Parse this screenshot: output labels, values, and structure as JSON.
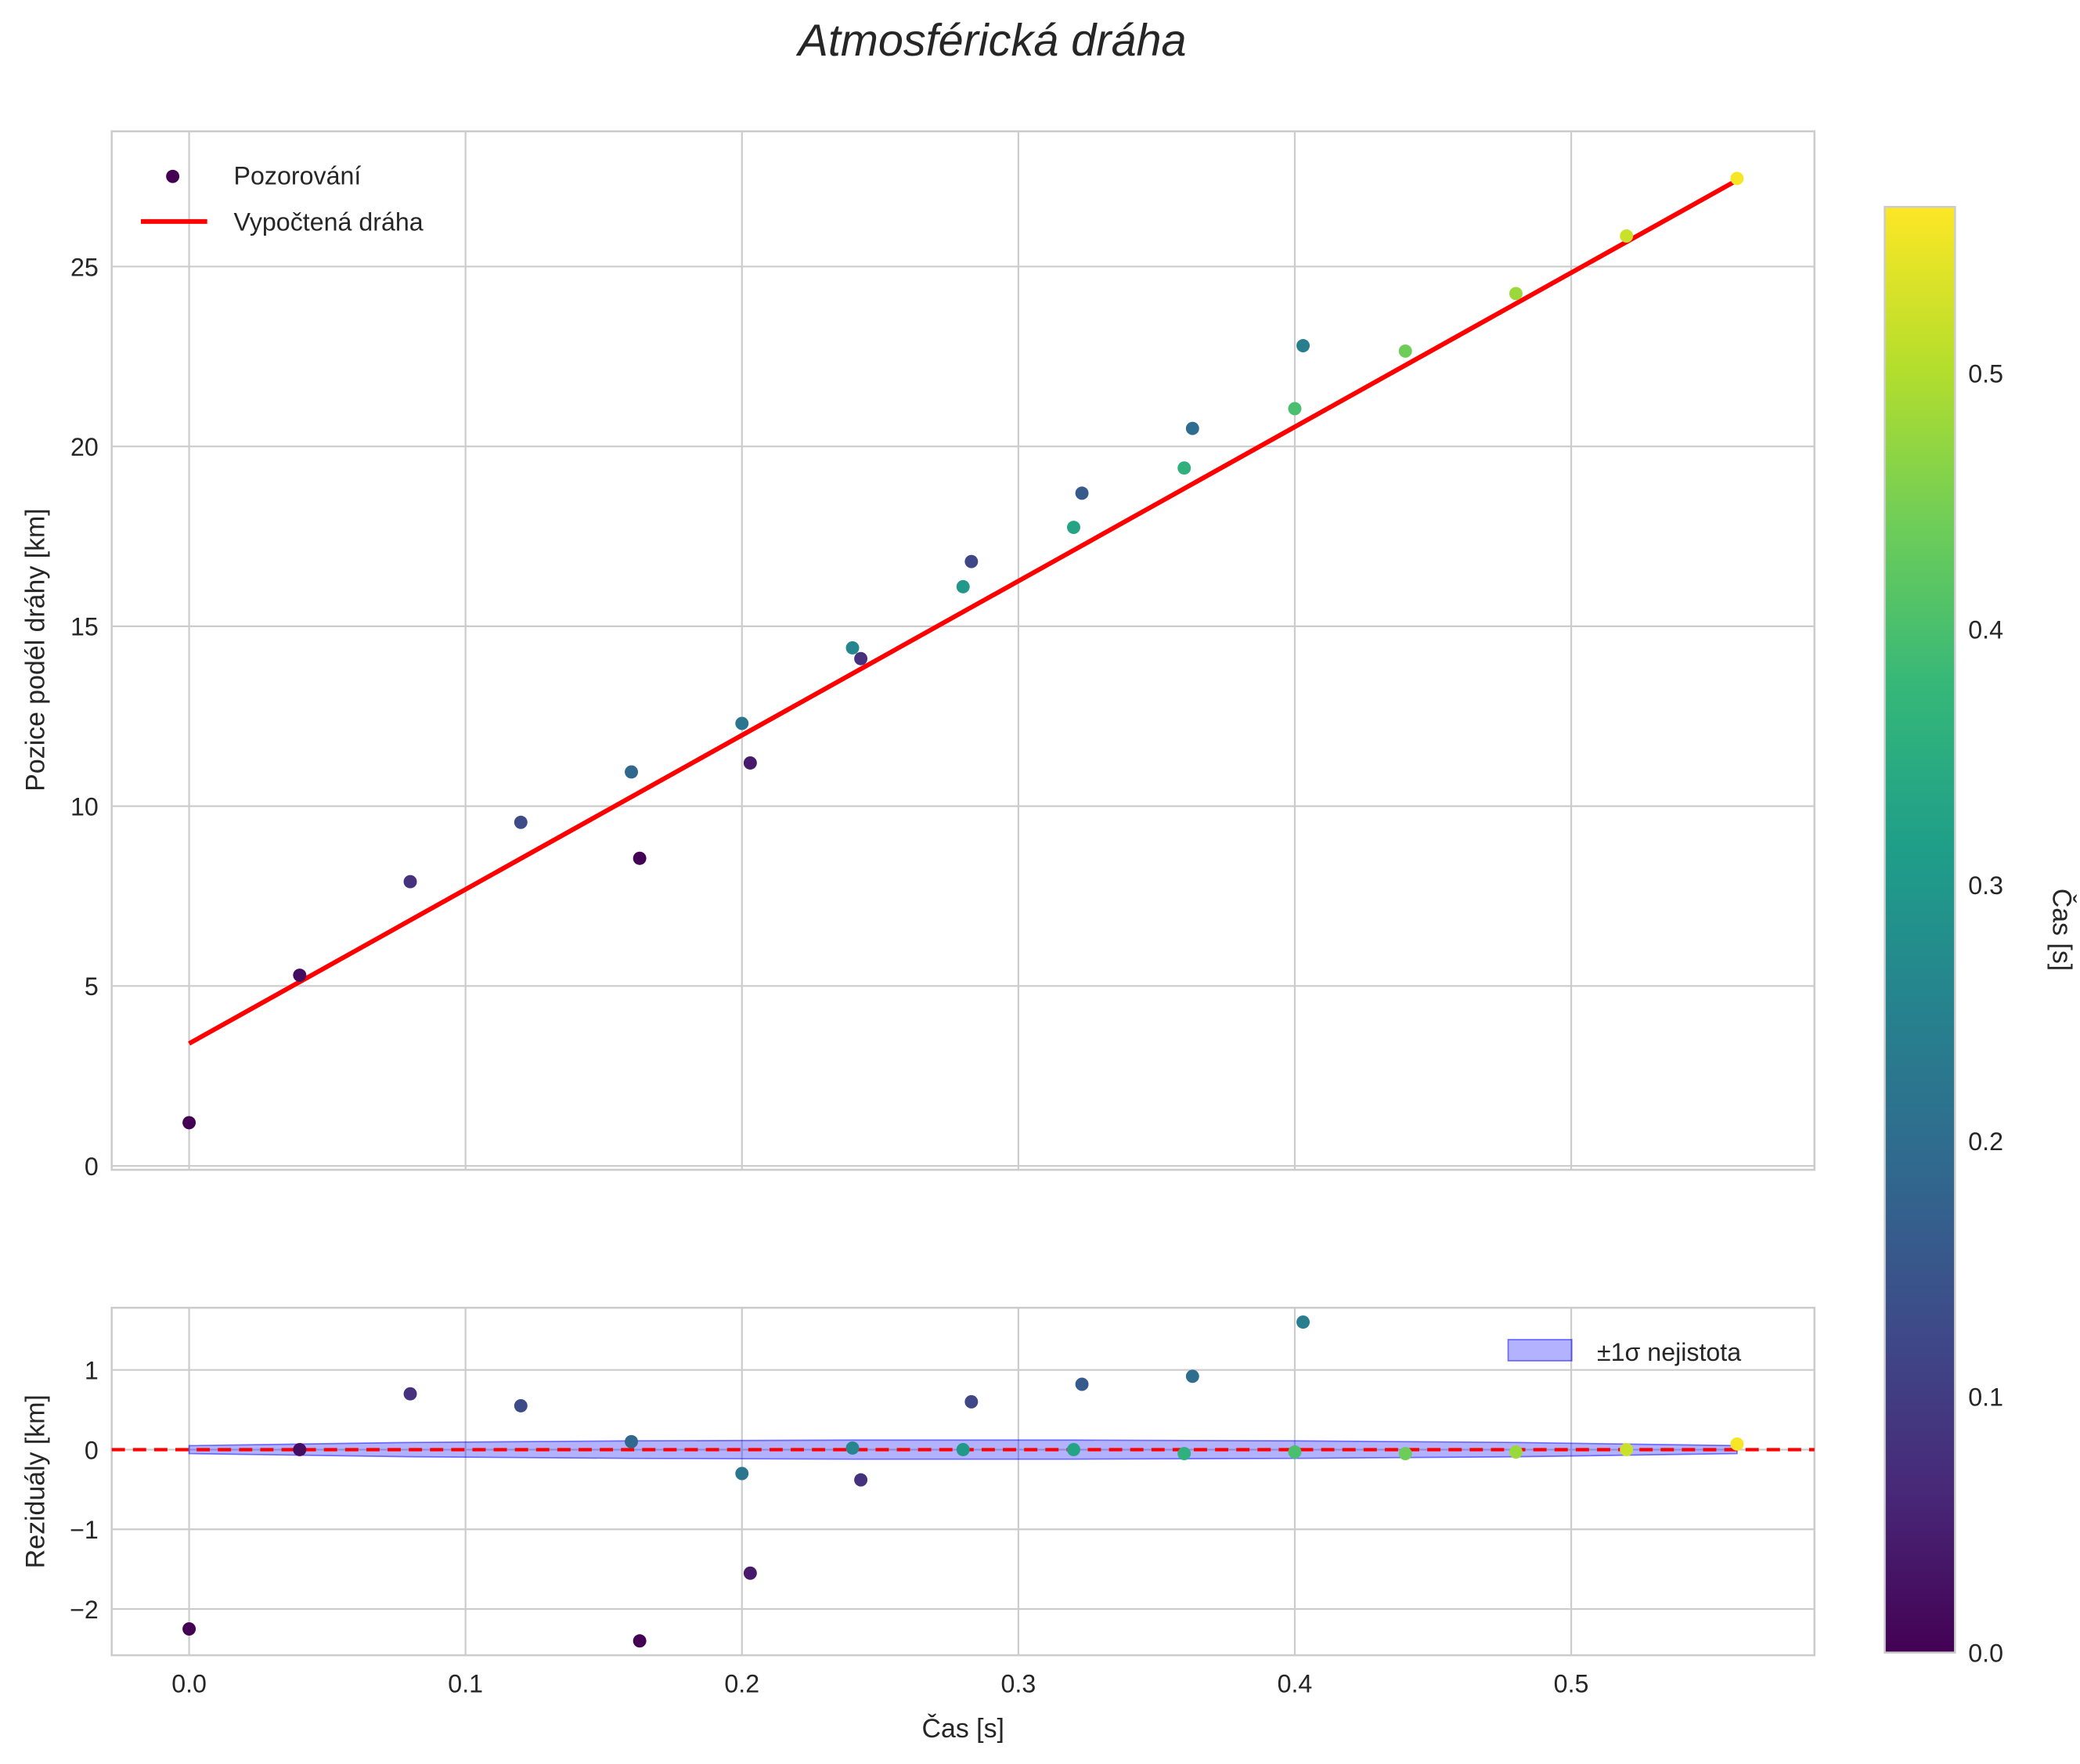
{
  "chart_data": [
    {
      "type": "scatter",
      "title": "Atmosférická dráha",
      "xlabel": "",
      "ylabel": "Pozice podél dráhy [km]",
      "xlim": [
        -0.028,
        0.588
      ],
      "ylim": [
        -0.11,
        28.76
      ],
      "xticks": [
        "0.0",
        "0.1",
        "0.2",
        "0.3",
        "0.4",
        "0.5"
      ],
      "yticks": [
        "0",
        "5",
        "10",
        "15",
        "20",
        "25"
      ],
      "legend": {
        "position": "top-left",
        "entries": [
          "Pozorování",
          "Vypočtená dráha"
        ]
      },
      "series": [
        {
          "name": "Pozorování",
          "type": "scatter",
          "points": [
            {
              "t": 0.0,
              "y": 1.2,
              "c": 0.0
            },
            {
              "t": 0.04,
              "y": 5.3,
              "c": 0.02
            },
            {
              "t": 0.08,
              "y": 7.9,
              "c": 0.08
            },
            {
              "t": 0.12,
              "y": 9.55,
              "c": 0.13
            },
            {
              "t": 0.16,
              "y": 10.95,
              "c": 0.19
            },
            {
              "t": 0.163,
              "y": 8.55,
              "c": 0.0
            },
            {
              "t": 0.2,
              "y": 12.3,
              "c": 0.22
            },
            {
              "t": 0.203,
              "y": 11.2,
              "c": 0.04
            },
            {
              "t": 0.24,
              "y": 14.4,
              "c": 0.26
            },
            {
              "t": 0.243,
              "y": 14.1,
              "c": 0.08
            },
            {
              "t": 0.28,
              "y": 16.1,
              "c": 0.3
            },
            {
              "t": 0.283,
              "y": 16.8,
              "c": 0.12
            },
            {
              "t": 0.32,
              "y": 17.75,
              "c": 0.33
            },
            {
              "t": 0.323,
              "y": 18.7,
              "c": 0.16
            },
            {
              "t": 0.36,
              "y": 19.4,
              "c": 0.36
            },
            {
              "t": 0.363,
              "y": 20.5,
              "c": 0.2
            },
            {
              "t": 0.4,
              "y": 21.05,
              "c": 0.4
            },
            {
              "t": 0.403,
              "y": 22.8,
              "c": 0.24
            },
            {
              "t": 0.44,
              "y": 22.65,
              "c": 0.44
            },
            {
              "t": 0.48,
              "y": 24.25,
              "c": 0.48
            },
            {
              "t": 0.52,
              "y": 25.85,
              "c": 0.52
            },
            {
              "t": 0.56,
              "y": 27.45,
              "c": 0.56
            }
          ]
        },
        {
          "name": "Vypočtená dráha",
          "type": "line",
          "color": "#ff0000",
          "x": [
            0.0,
            0.56
          ],
          "y": [
            3.4,
            27.4
          ]
        }
      ]
    },
    {
      "type": "scatter",
      "xlabel": "Čas [s]",
      "ylabel": "Reziduály [km]",
      "xlim": [
        -0.028,
        0.588
      ],
      "ylim": [
        -2.58,
        1.78
      ],
      "xticks": [
        "0.0",
        "0.1",
        "0.2",
        "0.3",
        "0.4",
        "0.5"
      ],
      "yticks": [
        "−2",
        "−1",
        "0",
        "1"
      ],
      "ytick_values": [
        -2,
        -1,
        0,
        1
      ],
      "legend": {
        "position": "top-right",
        "entries": [
          "±1σ nejistota"
        ]
      },
      "band": {
        "name": "±1σ nejistota",
        "color": "#0000ff",
        "x": [
          0.0,
          0.08,
          0.16,
          0.24,
          0.32,
          0.4,
          0.48,
          0.56
        ],
        "sigma": [
          0.05,
          0.09,
          0.11,
          0.12,
          0.12,
          0.11,
          0.09,
          0.05
        ]
      },
      "zero_line_color": "#ff0000",
      "residuals": [
        -2.25,
        0.0,
        0.7,
        0.55,
        0.1,
        -2.4,
        -0.3,
        -1.55,
        0.02,
        -0.38,
        0.0,
        0.6,
        0.0,
        0.82,
        -0.05,
        0.92,
        -0.03,
        1.6,
        -0.05,
        -0.03,
        0.0,
        0.07
      ]
    },
    {
      "type": "colorbar",
      "label": "Čas [s]",
      "range": [
        0,
        0.565
      ],
      "ticks": [
        "0.0",
        "0.1",
        "0.2",
        "0.3",
        "0.4",
        "0.5"
      ],
      "tick_values": [
        0,
        0.1,
        0.2,
        0.3,
        0.4,
        0.5
      ],
      "colormap": "viridis"
    }
  ]
}
